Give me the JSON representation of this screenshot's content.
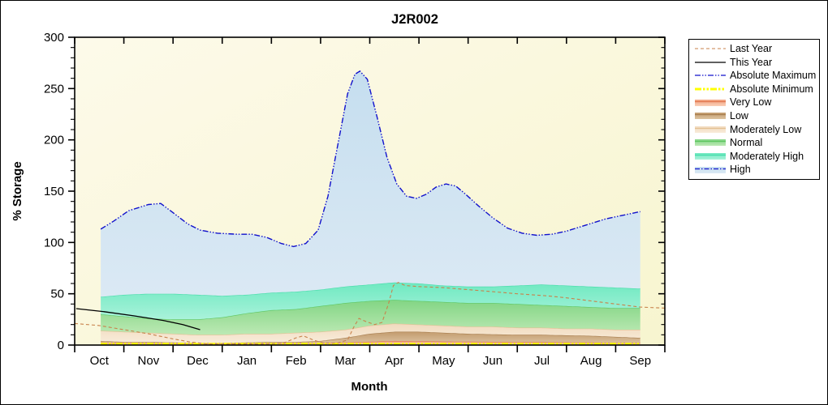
{
  "title": "J2R002",
  "axes": {
    "x_label": "Month",
    "y_label": "% Storage",
    "x_categories": [
      "Oct",
      "Nov",
      "Dec",
      "Jan",
      "Feb",
      "Mar",
      "Apr",
      "May",
      "Jun",
      "Jul",
      "Aug",
      "Sep"
    ],
    "y_ticks": [
      0,
      50,
      100,
      150,
      200,
      250,
      300
    ],
    "y_minor_step": 10,
    "y_max": 300
  },
  "legend": {
    "items": [
      {
        "label": "Last Year",
        "type": "line",
        "color": "#c8824b",
        "width": 1.1,
        "dash": "4 3"
      },
      {
        "label": "This Year",
        "type": "line",
        "color": "#000000",
        "width": 1.3,
        "dash": ""
      },
      {
        "label": "Absolute Maximum",
        "type": "line",
        "color": "#1111cc",
        "width": 1.3,
        "dash": "7 2 1.5 2 1.5 2"
      },
      {
        "label": "Absolute Minimum",
        "type": "line",
        "color": "#ffff00",
        "width": 3,
        "dash": "8 2 2.5 2 2.5 2"
      },
      {
        "label": "Very Low",
        "type": "band",
        "fill": [
          "#f2a17e",
          "#f9cfb8"
        ],
        "edge": "#e0764f",
        "edge_dash": ""
      },
      {
        "label": "Low",
        "type": "band",
        "fill": [
          "#c29b6d",
          "#dcc2a0"
        ],
        "edge": "#a67c4e",
        "edge_dash": ""
      },
      {
        "label": "Moderately Low",
        "type": "band",
        "fill": [
          "#f1dabe",
          "#f8ecda"
        ],
        "edge": "#e3c093",
        "edge_dash": ""
      },
      {
        "label": "Normal",
        "type": "band",
        "fill": [
          "#82d584",
          "#bce9b4"
        ],
        "edge": "#5dc55f",
        "edge_dash": ""
      },
      {
        "label": "Moderately High",
        "type": "band",
        "fill": [
          "#6fe9c1",
          "#a9f2da"
        ],
        "edge": "#44dca8",
        "edge_dash": ""
      },
      {
        "label": "High",
        "type": "band",
        "fill": [
          "#c5deef",
          "#dbe9f4"
        ],
        "edge": "#1111cc",
        "edge_dash": "6 2 1.5 2"
      }
    ]
  },
  "chart_data": {
    "type": "area",
    "title": "J2R002",
    "xlabel": "Month",
    "ylabel": "% Storage",
    "ylim": [
      0,
      300
    ],
    "x_unit": "month index, 0 = start Oct, 12 = end Sep; data points at month centers k+0.5",
    "band_domain": [
      0.53,
      11.5
    ],
    "plot_bg": [
      "#fdfaea",
      "#f7f5cf"
    ],
    "bands": [
      {
        "name": "very_low",
        "label": "Very Low",
        "fill": [
          "#f2a17e",
          "#f9cfb8"
        ],
        "edge": "#e0764f",
        "top": [
          [
            0.53,
            2.5
          ],
          [
            1.5,
            2
          ],
          [
            3,
            1.5
          ],
          [
            4.5,
            2
          ],
          [
            5.5,
            2.5
          ],
          [
            6.5,
            4
          ],
          [
            7.5,
            3.5
          ],
          [
            9,
            3
          ],
          [
            10.5,
            2.5
          ],
          [
            11.5,
            2
          ]
        ]
      },
      {
        "name": "low",
        "label": "Low",
        "fill": [
          "#c29b6d",
          "#dcc2a0"
        ],
        "edge": "#a67c4e",
        "top": [
          [
            0.53,
            4
          ],
          [
            1,
            3
          ],
          [
            1.5,
            3
          ],
          [
            2,
            2.5
          ],
          [
            2.5,
            2
          ],
          [
            3,
            2
          ],
          [
            3.5,
            2.5
          ],
          [
            4,
            3
          ],
          [
            4.5,
            3
          ],
          [
            5,
            4
          ],
          [
            5.5,
            7
          ],
          [
            6,
            11
          ],
          [
            6.5,
            13
          ],
          [
            7,
            13
          ],
          [
            7.5,
            12
          ],
          [
            8,
            11
          ],
          [
            8.5,
            10.5
          ],
          [
            9,
            10
          ],
          [
            9.5,
            10
          ],
          [
            10,
            9.5
          ],
          [
            10.5,
            9
          ],
          [
            11,
            8
          ],
          [
            11.5,
            7
          ]
        ]
      },
      {
        "name": "moderately_low",
        "label": "Moderately Low",
        "fill": [
          "#f1dabe",
          "#f8ecda"
        ],
        "edge": "#e3c093",
        "top": [
          [
            0.53,
            14
          ],
          [
            1,
            13
          ],
          [
            1.5,
            12
          ],
          [
            2,
            11
          ],
          [
            2.5,
            10
          ],
          [
            3,
            10
          ],
          [
            3.5,
            11
          ],
          [
            4,
            11
          ],
          [
            4.5,
            12
          ],
          [
            5,
            13
          ],
          [
            5.5,
            15
          ],
          [
            6,
            19
          ],
          [
            6.5,
            21
          ],
          [
            7,
            20
          ],
          [
            7.5,
            19
          ],
          [
            8,
            18
          ],
          [
            8.5,
            18
          ],
          [
            9,
            17
          ],
          [
            9.5,
            17
          ],
          [
            10,
            16
          ],
          [
            10.5,
            16
          ],
          [
            11,
            15
          ],
          [
            11.5,
            15
          ]
        ]
      },
      {
        "name": "normal",
        "label": "Normal",
        "fill": [
          "#82d584",
          "#bce9b4"
        ],
        "edge": "#5dc55f",
        "top": [
          [
            0.53,
            30
          ],
          [
            1,
            28
          ],
          [
            1.5,
            26
          ],
          [
            2,
            25
          ],
          [
            2.5,
            25
          ],
          [
            3,
            27
          ],
          [
            3.5,
            31
          ],
          [
            4,
            34
          ],
          [
            4.5,
            35
          ],
          [
            5,
            38
          ],
          [
            5.5,
            41
          ],
          [
            6,
            43
          ],
          [
            6.5,
            44
          ],
          [
            7,
            43
          ],
          [
            7.5,
            42
          ],
          [
            8,
            41
          ],
          [
            8.5,
            41
          ],
          [
            9,
            40
          ],
          [
            9.5,
            39
          ],
          [
            10,
            38
          ],
          [
            10.5,
            37
          ],
          [
            11,
            36
          ],
          [
            11.5,
            36
          ]
        ]
      },
      {
        "name": "moderately_high",
        "label": "Moderately High",
        "fill": [
          "#6fe9c1",
          "#a9f2da"
        ],
        "edge": "#44dca8",
        "top": [
          [
            0.53,
            47
          ],
          [
            1,
            49
          ],
          [
            1.5,
            50
          ],
          [
            2,
            50
          ],
          [
            2.5,
            49
          ],
          [
            3,
            48
          ],
          [
            3.5,
            49
          ],
          [
            4,
            51
          ],
          [
            4.5,
            52
          ],
          [
            5,
            54
          ],
          [
            5.5,
            57
          ],
          [
            6,
            59
          ],
          [
            6.5,
            61
          ],
          [
            7,
            60
          ],
          [
            7.5,
            58
          ],
          [
            8,
            57
          ],
          [
            8.5,
            57
          ],
          [
            9,
            58
          ],
          [
            9.5,
            59
          ],
          [
            10,
            58
          ],
          [
            10.5,
            57
          ],
          [
            11,
            56
          ],
          [
            11.5,
            55
          ]
        ]
      },
      {
        "name": "high",
        "label": "High",
        "fill": [
          "#c5deef",
          "#dbe9f4"
        ],
        "edge": "",
        "top_line": "absolute_maximum"
      }
    ],
    "lines": [
      {
        "name": "absolute_minimum",
        "label": "Absolute Minimum",
        "color": "#ffff00",
        "width": 3,
        "dash": "8 2 2.5 2 2.5 2",
        "points": [
          [
            0.53,
            1
          ],
          [
            11.5,
            1
          ]
        ]
      },
      {
        "name": "last_year",
        "label": "Last Year",
        "color": "#c8824b",
        "width": 1.1,
        "dash": "4 3",
        "points": [
          [
            0,
            21
          ],
          [
            0.5,
            19
          ],
          [
            1,
            15
          ],
          [
            1.5,
            11
          ],
          [
            2,
            6
          ],
          [
            2.35,
            3
          ],
          [
            2.7,
            1
          ],
          [
            3.3,
            1
          ],
          [
            3.9,
            1
          ],
          [
            4.25,
            2
          ],
          [
            4.5,
            7
          ],
          [
            4.65,
            9
          ],
          [
            4.85,
            5
          ],
          [
            5.05,
            2
          ],
          [
            5.35,
            2
          ],
          [
            5.55,
            5
          ],
          [
            5.68,
            18
          ],
          [
            5.78,
            26
          ],
          [
            5.92,
            23
          ],
          [
            6.1,
            20
          ],
          [
            6.25,
            22
          ],
          [
            6.38,
            40
          ],
          [
            6.48,
            58
          ],
          [
            6.58,
            61
          ],
          [
            6.72,
            58
          ],
          [
            7,
            57
          ],
          [
            7.5,
            56
          ],
          [
            8,
            54
          ],
          [
            8.5,
            52
          ],
          [
            9,
            50
          ],
          [
            9.6,
            48
          ],
          [
            10,
            46
          ],
          [
            10.5,
            43
          ],
          [
            11,
            40
          ],
          [
            11.5,
            37
          ],
          [
            12,
            36
          ]
        ]
      },
      {
        "name": "this_year",
        "label": "This Year",
        "color": "#000000",
        "width": 1.3,
        "dash": "",
        "points": [
          [
            0.03,
            35.5
          ],
          [
            0.6,
            32.5
          ],
          [
            1.2,
            28.5
          ],
          [
            1.8,
            24
          ],
          [
            2.2,
            20
          ],
          [
            2.55,
            15
          ]
        ]
      },
      {
        "name": "absolute_maximum",
        "label": "Absolute Maximum",
        "color": "#1111cc",
        "width": 1.4,
        "dash": "7 2 1.5 2 1.5 2",
        "points": [
          [
            0.53,
            113
          ],
          [
            0.8,
            121
          ],
          [
            1.1,
            131
          ],
          [
            1.5,
            137
          ],
          [
            1.75,
            138
          ],
          [
            2,
            129
          ],
          [
            2.3,
            118
          ],
          [
            2.55,
            112
          ],
          [
            2.9,
            109
          ],
          [
            3.3,
            108
          ],
          [
            3.6,
            108
          ],
          [
            3.9,
            105
          ],
          [
            4.2,
            99
          ],
          [
            4.45,
            96
          ],
          [
            4.7,
            99
          ],
          [
            4.95,
            112
          ],
          [
            5.15,
            145
          ],
          [
            5.35,
            195
          ],
          [
            5.55,
            245
          ],
          [
            5.7,
            264
          ],
          [
            5.8,
            267
          ],
          [
            5.95,
            259
          ],
          [
            6.15,
            222
          ],
          [
            6.35,
            183
          ],
          [
            6.55,
            157
          ],
          [
            6.75,
            145
          ],
          [
            6.95,
            143
          ],
          [
            7.15,
            147
          ],
          [
            7.35,
            154
          ],
          [
            7.55,
            157
          ],
          [
            7.75,
            155
          ],
          [
            7.95,
            147
          ],
          [
            8.2,
            136
          ],
          [
            8.5,
            124
          ],
          [
            8.8,
            114
          ],
          [
            9.1,
            109
          ],
          [
            9.4,
            107
          ],
          [
            9.7,
            108
          ],
          [
            10,
            111
          ],
          [
            10.4,
            117
          ],
          [
            10.8,
            123
          ],
          [
            11.2,
            127
          ],
          [
            11.5,
            130
          ]
        ]
      }
    ]
  }
}
